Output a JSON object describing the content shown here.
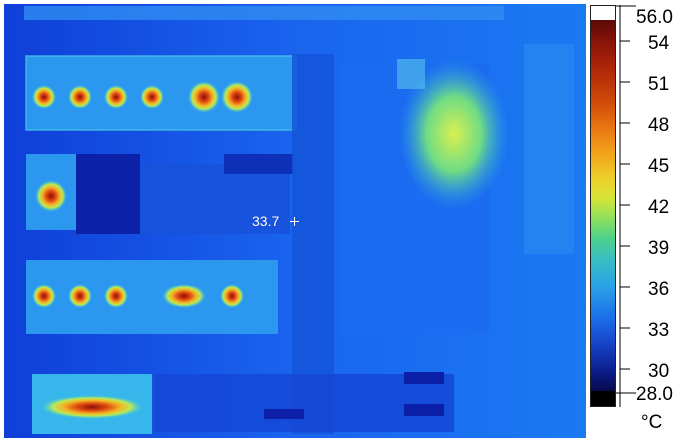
{
  "thermal_image": {
    "description_name": "thermal-camera-view",
    "palette": {
      "cold": "#0b1fd6",
      "background": "#1a6cf0",
      "warm": "#38c9e6",
      "hot_core": "#ffe23a",
      "hottest": "#b4160a"
    }
  },
  "spot_measurement": {
    "value": "33.7",
    "marker_icon": "crosshair-icon"
  },
  "color_scale": {
    "max_label": "56.0",
    "min_label": "28.0",
    "ticks": [
      "54",
      "51",
      "48",
      "45",
      "42",
      "39",
      "36",
      "33",
      "30"
    ],
    "unit": "°C"
  }
}
